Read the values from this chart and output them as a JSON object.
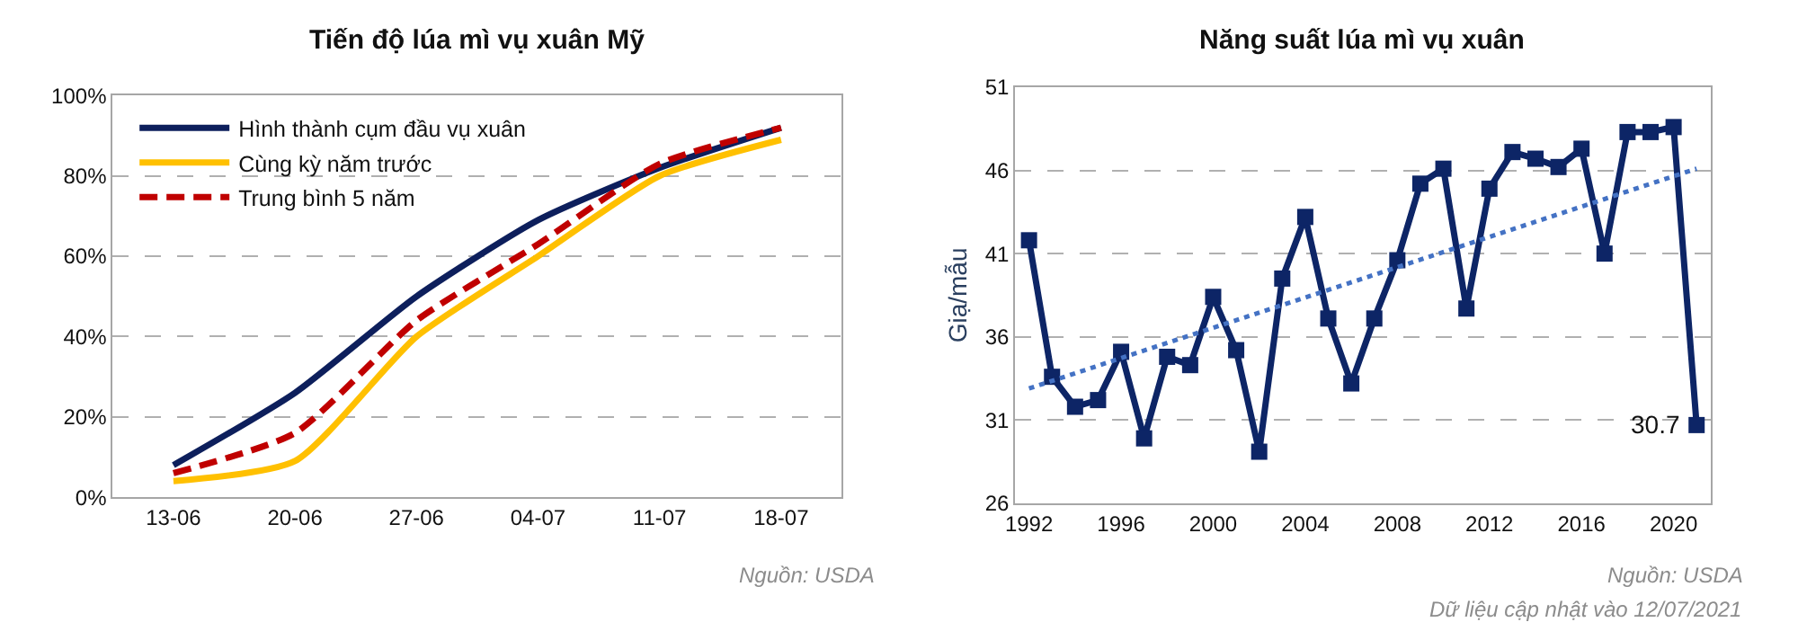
{
  "chart_data": [
    {
      "type": "line",
      "title": "Tiến độ lúa mì vụ xuân Mỹ",
      "categories": [
        "13-06",
        "20-06",
        "27-06",
        "04-07",
        "11-07",
        "18-07"
      ],
      "series": [
        {
          "name": "Hình thành cụm đầu vụ xuân",
          "color": "#0d1f5c",
          "line_style": "solid",
          "values": [
            8,
            26,
            50,
            69,
            82,
            92
          ]
        },
        {
          "name": "Cùng kỳ năm trước",
          "color": "#ffc000",
          "line_style": "solid",
          "values": [
            4,
            9,
            40,
            60,
            80,
            89
          ]
        },
        {
          "name": "Trung bình 5 năm",
          "color": "#c00000",
          "line_style": "dashed",
          "values": [
            6,
            16,
            44,
            63,
            83,
            92
          ]
        }
      ],
      "ylim": [
        0,
        100
      ],
      "yticks": [
        {
          "value": 0,
          "label": "0%"
        },
        {
          "value": 20,
          "label": "20%"
        },
        {
          "value": 40,
          "label": "40%"
        },
        {
          "value": 60,
          "label": "60%"
        },
        {
          "value": 80,
          "label": "80%"
        },
        {
          "value": 100,
          "label": "100%"
        }
      ],
      "grid": "y",
      "legend": "top left",
      "marker": "none",
      "annotations": [
        "Nguồn: USDA"
      ]
    },
    {
      "type": "line",
      "title": "Năng suất lúa mì vụ xuân",
      "ylabel": "Giạ/mẫu",
      "x": [
        1992,
        1993,
        1994,
        1995,
        1996,
        1997,
        1998,
        1999,
        2000,
        2001,
        2002,
        2003,
        2004,
        2005,
        2006,
        2007,
        2008,
        2009,
        2010,
        2011,
        2012,
        2013,
        2014,
        2015,
        2016,
        2017,
        2018,
        2019,
        2020,
        2021
      ],
      "series": [
        {
          "color": "#0d2566",
          "marker": "square",
          "line_style": "solid",
          "values": [
            41.8,
            33.6,
            31.8,
            32.2,
            35.1,
            29.9,
            34.8,
            34.3,
            38.4,
            35.2,
            29.1,
            39.5,
            43.2,
            37.1,
            33.2,
            37.1,
            40.6,
            45.2,
            46.1,
            37.7,
            44.9,
            47.1,
            46.7,
            46.2,
            47.3,
            41.0,
            48.3,
            48.3,
            48.6,
            30.7
          ],
          "value_labels": [
            null,
            null,
            null,
            null,
            null,
            null,
            null,
            null,
            null,
            null,
            null,
            null,
            null,
            null,
            null,
            null,
            null,
            null,
            null,
            null,
            null,
            null,
            null,
            null,
            null,
            null,
            null,
            null,
            null,
            "30.7"
          ]
        },
        {
          "type": "line",
          "color": "#4472c4",
          "marker": "none",
          "line_style": "dotted",
          "x": [
            1992,
            2021
          ],
          "values": [
            32.9,
            46.1
          ]
        }
      ],
      "xlim": [
        1991.4,
        2021.6
      ],
      "xticks": [
        1992,
        1996,
        2000,
        2004,
        2008,
        2012,
        2016,
        2020
      ],
      "ylim": [
        26,
        51
      ],
      "yticks": [
        26,
        31,
        36,
        41,
        46,
        51
      ],
      "grid": "y",
      "legend": false,
      "annotations": [
        "Nguồn: USDA",
        "Dữ liệu cập nhật vào 12/07/2021"
      ]
    }
  ]
}
